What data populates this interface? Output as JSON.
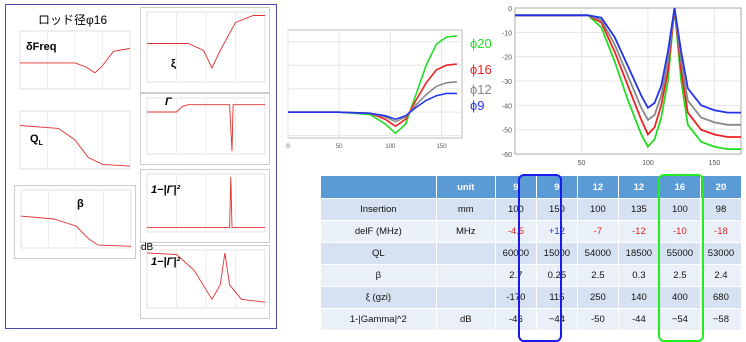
{
  "panel": {
    "title": "ロッド径φ16",
    "plots": [
      {
        "name": "dfreq",
        "label": "δFreq"
      },
      {
        "name": "xi",
        "label": "ξ"
      },
      {
        "name": "ql",
        "label": "Q",
        "sub": "L"
      },
      {
        "name": "gamma",
        "label": "Γ"
      },
      {
        "name": "beta",
        "label": "β"
      },
      {
        "name": "gamma2a",
        "label": "1−|Γ|²"
      },
      {
        "name": "gamma2b",
        "label": "1−|Γ|²",
        "unit": "dB"
      }
    ]
  },
  "legend": [
    {
      "label": "ϕ20",
      "color": "#22dd22"
    },
    {
      "label": "ϕ16",
      "color": "#ee2222"
    },
    {
      "label": "ϕ12",
      "color": "#888888"
    },
    {
      "label": "ϕ9",
      "color": "#2233ee"
    }
  ],
  "chart_data": [
    {
      "type": "line",
      "title": "",
      "x_ticks": [
        "0",
        "50",
        "100",
        "150"
      ],
      "xlim": [
        0,
        170
      ],
      "series": [
        {
          "name": "ϕ20",
          "color": "#22dd22",
          "x": [
            0,
            50,
            80,
            95,
            105,
            115,
            125,
            135,
            145,
            155,
            165
          ],
          "y": [
            0,
            0,
            -2,
            -10,
            -18,
            -10,
            15,
            40,
            58,
            64,
            65
          ]
        },
        {
          "name": "ϕ16",
          "color": "#ee2222",
          "x": [
            0,
            50,
            80,
            95,
            105,
            115,
            125,
            135,
            145,
            155,
            165
          ],
          "y": [
            0,
            0,
            -1,
            -6,
            -12,
            -6,
            10,
            25,
            36,
            40,
            41
          ]
        },
        {
          "name": "ϕ12",
          "color": "#888888",
          "x": [
            0,
            50,
            80,
            95,
            105,
            115,
            125,
            135,
            145,
            155,
            165
          ],
          "y": [
            0,
            0,
            -1,
            -4,
            -8,
            -4,
            6,
            15,
            22,
            25,
            26
          ]
        },
        {
          "name": "ϕ9",
          "color": "#2233ee",
          "x": [
            0,
            50,
            80,
            95,
            105,
            115,
            125,
            135,
            145,
            155,
            165
          ],
          "y": [
            0,
            0,
            -1,
            -3,
            -6,
            -3,
            4,
            10,
            14,
            16,
            16
          ]
        }
      ]
    },
    {
      "type": "line",
      "title": "",
      "x_ticks": [
        "50",
        "100",
        "150"
      ],
      "y_ticks": [
        "0",
        "-10",
        "-20",
        "-30",
        "-40",
        "-50",
        "-60"
      ],
      "xlim": [
        0,
        170
      ],
      "ylim": [
        -60,
        0
      ],
      "series": [
        {
          "name": "ϕ20",
          "color": "#22dd22",
          "x": [
            0,
            55,
            65,
            75,
            85,
            95,
            100,
            105,
            110,
            115,
            120,
            125,
            130,
            140,
            150,
            160,
            170
          ],
          "y": [
            -3,
            -3,
            -8,
            -22,
            -38,
            -52,
            -57,
            -54,
            -45,
            -30,
            0,
            -30,
            -48,
            -55,
            -57,
            -58,
            -58
          ]
        },
        {
          "name": "ϕ16",
          "color": "#ee2222",
          "x": [
            0,
            55,
            65,
            75,
            85,
            95,
            100,
            105,
            110,
            115,
            120,
            125,
            130,
            140,
            150,
            160,
            170
          ],
          "y": [
            -3,
            -3,
            -6,
            -18,
            -32,
            -46,
            -52,
            -49,
            -40,
            -26,
            0,
            -26,
            -43,
            -50,
            -52,
            -53,
            -53
          ]
        },
        {
          "name": "ϕ12",
          "color": "#888888",
          "x": [
            0,
            55,
            65,
            75,
            85,
            95,
            100,
            105,
            110,
            115,
            120,
            125,
            130,
            140,
            150,
            160,
            170
          ],
          "y": [
            -3,
            -3,
            -5,
            -15,
            -28,
            -41,
            -46,
            -44,
            -36,
            -22,
            0,
            -22,
            -38,
            -45,
            -47,
            -48,
            -48
          ]
        },
        {
          "name": "ϕ9",
          "color": "#2233ee",
          "x": [
            0,
            55,
            65,
            75,
            85,
            95,
            100,
            105,
            110,
            115,
            120,
            125,
            130,
            140,
            150,
            160,
            170
          ],
          "y": [
            -3,
            -3,
            -4,
            -12,
            -24,
            -36,
            -41,
            -39,
            -32,
            -18,
            0,
            -18,
            -33,
            -40,
            -42,
            -43,
            -43
          ]
        }
      ]
    },
    {
      "type": "table",
      "headers": [
        "",
        "unit",
        "9",
        "9",
        "12",
        "12",
        "16",
        "20"
      ],
      "rows": [
        {
          "cells": [
            "Insertion",
            "mm",
            "100",
            "150",
            "100",
            "135",
            "100",
            "98"
          ]
        },
        {
          "cells": [
            "delF (MHz)",
            "MHz",
            "-4.5",
            "+12",
            "-7",
            "-12",
            "-10",
            "-18"
          ],
          "colors": [
            "",
            "",
            "#dd2222",
            "#2233dd",
            "#dd2222",
            "#dd2222",
            "#dd2222",
            "#dd2222"
          ]
        },
        {
          "cells": [
            "QL",
            "",
            "60000",
            "15000",
            "54000",
            "18500",
            "55000",
            "53000"
          ]
        },
        {
          "cells": [
            "β",
            "",
            "2.7",
            "0.25",
            "2.5",
            "0.3",
            "2.5",
            "2.4"
          ]
        },
        {
          "cells": [
            "ξ  (gzi)",
            "",
            "-170",
            "115",
            "250",
            "140",
            "400",
            "680"
          ]
        },
        {
          "cells": [
            "1-|Gamma|^2",
            "dB",
            "-46",
            "−44",
            "-50",
            "-44",
            "−54",
            "−58"
          ]
        }
      ]
    }
  ]
}
